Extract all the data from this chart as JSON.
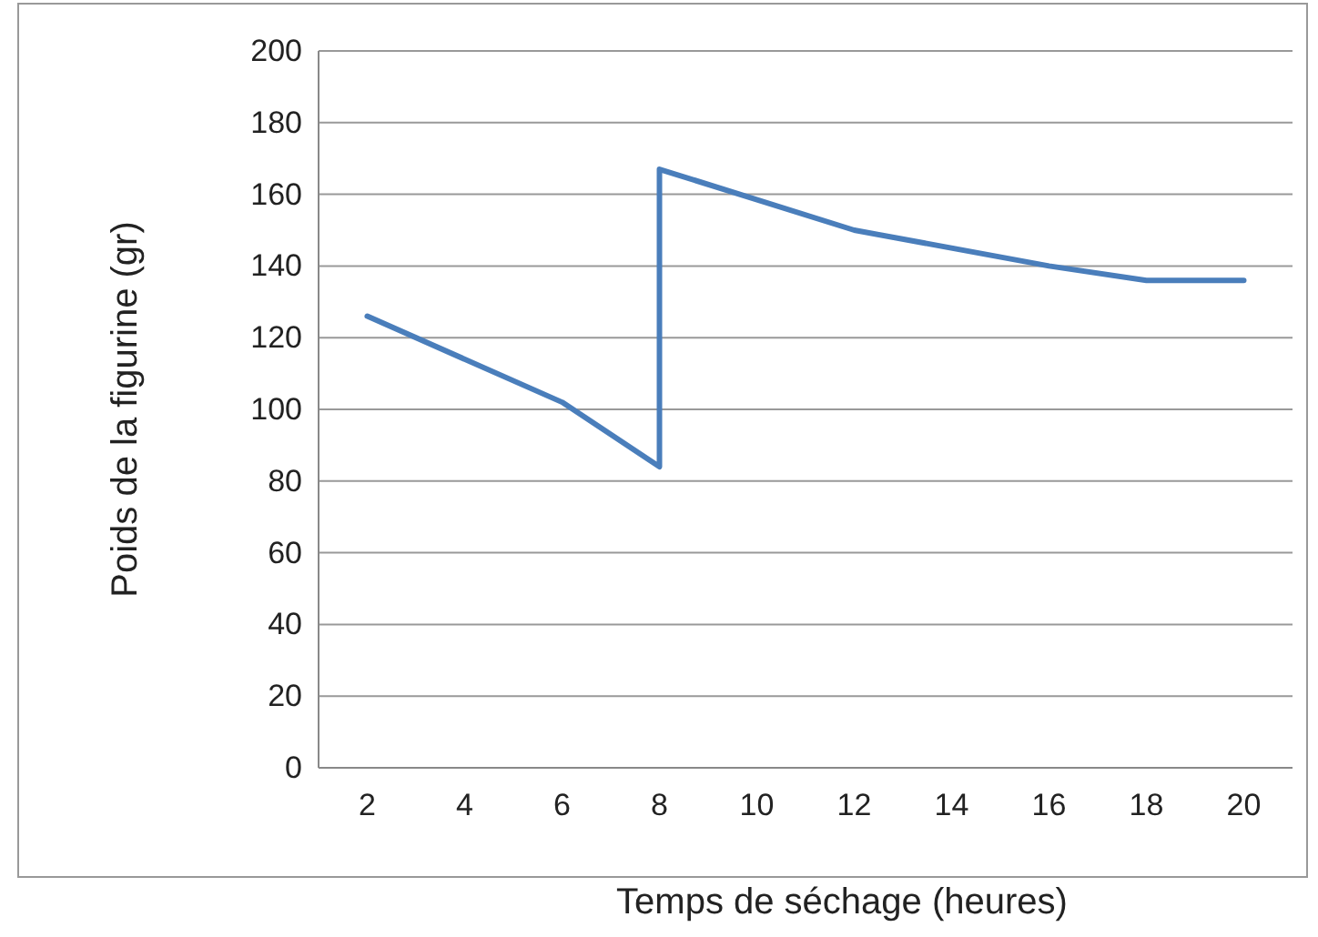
{
  "chart_data": {
    "type": "line",
    "xlabel": "Temps de séchage (heures)",
    "ylabel": "Poids de la figurine (gr)",
    "x": [
      2,
      6,
      8,
      8,
      12,
      16,
      18,
      20
    ],
    "series": [
      {
        "color": "#4a7ebb",
        "values": [
          126,
          102,
          84,
          167,
          150,
          140,
          136,
          136
        ]
      }
    ],
    "xlim": [
      1,
      21
    ],
    "xticks": [
      2,
      4,
      6,
      8,
      10,
      12,
      14,
      16,
      18,
      20
    ],
    "ylim": [
      0,
      200
    ],
    "yticks": [
      0,
      20,
      40,
      60,
      80,
      100,
      120,
      140,
      160,
      180,
      200
    ],
    "grid": "y",
    "marker": "none",
    "line_style": "solid"
  }
}
